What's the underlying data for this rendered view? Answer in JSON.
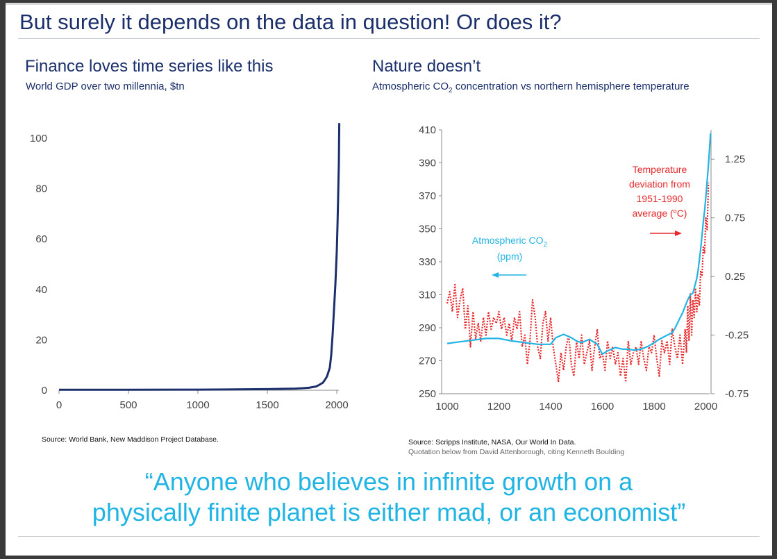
{
  "slide": {
    "title": "But surely it depends on the data in question! Or does it?",
    "quote_line1": "“Anyone who believes in infinite growth on a",
    "quote_line2": "physically finite planet is either mad, or an economist”",
    "colors": {
      "navy": "#1a2f6b",
      "cyan": "#20b4e4",
      "red": "#e8282b"
    }
  },
  "left_panel": {
    "title": "Finance loves time series like this",
    "caption": "World GDP over two millennia, $tn",
    "source": "Source: World Bank, New Maddison Project Database."
  },
  "right_panel": {
    "title": "Nature doesn’t",
    "caption_pre": "Atmospheric CO",
    "caption_sub": "2",
    "caption_post": " concentration vs northern hemisphere temperature",
    "source": "Source: Scripps Institute, NASA, Our World In Data.",
    "source_note": "Quotation below from David Attenborough, citing Kenneth Boulding"
  },
  "chart_data": [
    {
      "type": "line",
      "title": "World GDP over two millennia, $tn",
      "xlabel": "",
      "ylabel": "",
      "xlim": [
        0,
        2000
      ],
      "ylim": [
        0,
        100
      ],
      "x_ticks": [
        "0",
        "500",
        "1000",
        "1500",
        "2000"
      ],
      "y_ticks": [
        "0",
        "20",
        "40",
        "60",
        "80",
        "100"
      ],
      "series": [
        {
          "name": "World GDP",
          "color": "#1a2f6b",
          "x": [
            0,
            500,
            1000,
            1200,
            1500,
            1600,
            1700,
            1750,
            1800,
            1820,
            1850,
            1870,
            1900,
            1913,
            1930,
            1950,
            1960,
            1970,
            1980,
            1990,
            2000,
            2005,
            2010,
            2015,
            2018
          ],
          "y": [
            0.2,
            0.2,
            0.25,
            0.3,
            0.45,
            0.55,
            0.65,
            0.8,
            1.0,
            1.2,
            1.5,
            2.0,
            3.0,
            4.0,
            5.5,
            9.0,
            14.0,
            22.0,
            32.0,
            42.0,
            55.0,
            65.0,
            77.0,
            90.0,
            106.0
          ]
        }
      ]
    },
    {
      "type": "line",
      "title": "Atmospheric CO2 concentration vs northern hemisphere temperature",
      "xlim": [
        1000,
        2020
      ],
      "x_ticks": [
        "1000",
        "1200",
        "1400",
        "1600",
        "1800",
        "2000"
      ],
      "y_left": {
        "label": "Atmospheric CO2 (ppm)",
        "range": [
          250,
          410
        ],
        "ticks": [
          "250",
          "270",
          "290",
          "310",
          "330",
          "350",
          "370",
          "390",
          "410"
        ]
      },
      "y_right": {
        "label": "Temperature deviation from 1951-1990 average (oC)",
        "range": [
          -0.75,
          1.5
        ],
        "ticks": [
          "-0.75",
          "-0.25",
          "0.25",
          "0.75",
          "1.25"
        ]
      },
      "annotations": {
        "co2_label_1": "Atmospheric CO",
        "co2_label_sub": "2",
        "co2_label_2": "(ppm)",
        "temp_label_1": "Temperature",
        "temp_label_2": "deviation from",
        "temp_label_3": "1951-1990",
        "temp_label_4_pre": "average (",
        "temp_label_4_sup": "o",
        "temp_label_4_post": "C)"
      },
      "series": [
        {
          "name": "Atmospheric CO2 (ppm)",
          "axis": "left",
          "color": "#20b4e4",
          "style": "solid",
          "x": [
            1000,
            1050,
            1100,
            1150,
            1200,
            1250,
            1300,
            1350,
            1400,
            1420,
            1450,
            1480,
            1500,
            1520,
            1550,
            1580,
            1600,
            1620,
            1650,
            1680,
            1700,
            1720,
            1750,
            1780,
            1800,
            1820,
            1850,
            1870,
            1880,
            1900,
            1910,
            1920,
            1930,
            1940,
            1950,
            1960,
            1965,
            1970,
            1975,
            1980,
            1985,
            1990,
            1995,
            2000,
            2005,
            2010,
            2015,
            2018
          ],
          "y": [
            280.5,
            281.5,
            282.5,
            283.5,
            283.5,
            282,
            281,
            280,
            280,
            284,
            286,
            284,
            282,
            281,
            283,
            280,
            274,
            276,
            278,
            277,
            277,
            276.5,
            277,
            279,
            281,
            283,
            285.5,
            287,
            289.5,
            296,
            299,
            303,
            307,
            310,
            311,
            317,
            320,
            325,
            331,
            338,
            346,
            354,
            361,
            369,
            379,
            389,
            400,
            408
          ]
        },
        {
          "name": "Temperature deviation (°C)",
          "axis": "right",
          "color": "#e8282b",
          "style": "dotted",
          "x": [
            1000,
            1010,
            1020,
            1030,
            1040,
            1050,
            1060,
            1070,
            1080,
            1090,
            1100,
            1110,
            1120,
            1130,
            1140,
            1150,
            1160,
            1170,
            1180,
            1190,
            1200,
            1210,
            1220,
            1230,
            1240,
            1250,
            1260,
            1270,
            1280,
            1290,
            1300,
            1310,
            1320,
            1330,
            1340,
            1350,
            1360,
            1370,
            1380,
            1390,
            1400,
            1410,
            1420,
            1430,
            1440,
            1450,
            1460,
            1470,
            1480,
            1490,
            1500,
            1510,
            1520,
            1530,
            1540,
            1550,
            1560,
            1570,
            1580,
            1590,
            1600,
            1610,
            1620,
            1630,
            1640,
            1650,
            1660,
            1670,
            1680,
            1690,
            1700,
            1710,
            1720,
            1730,
            1740,
            1750,
            1760,
            1770,
            1780,
            1790,
            1800,
            1810,
            1820,
            1830,
            1840,
            1850,
            1860,
            1870,
            1880,
            1890,
            1900,
            1910,
            1920,
            1925,
            1930,
            1935,
            1940,
            1945,
            1950,
            1955,
            1960,
            1965,
            1970,
            1975,
            1980,
            1985,
            1990,
            1995,
            2000,
            2005,
            2010
          ],
          "y": [
            0.02,
            0.12,
            -0.05,
            0.18,
            -0.1,
            0.05,
            0.15,
            -0.2,
            0.0,
            -0.35,
            -0.05,
            -0.28,
            -0.15,
            -0.3,
            -0.1,
            -0.25,
            -0.05,
            -0.2,
            -0.1,
            -0.15,
            -0.05,
            -0.2,
            -0.1,
            -0.25,
            -0.15,
            -0.3,
            -0.1,
            -0.2,
            -0.05,
            -0.35,
            -0.25,
            -0.5,
            -0.3,
            0.05,
            -0.1,
            -0.35,
            -0.45,
            -0.15,
            -0.05,
            -0.3,
            -0.1,
            -0.35,
            -0.5,
            -0.65,
            -0.4,
            -0.55,
            -0.35,
            -0.25,
            -0.5,
            -0.6,
            -0.3,
            -0.45,
            -0.25,
            -0.5,
            -0.4,
            -0.3,
            -0.55,
            -0.35,
            -0.2,
            -0.45,
            -0.4,
            -0.55,
            -0.3,
            -0.45,
            -0.35,
            -0.5,
            -0.4,
            -0.6,
            -0.45,
            -0.65,
            -0.3,
            -0.5,
            -0.4,
            -0.35,
            -0.5,
            -0.3,
            -0.45,
            -0.55,
            -0.35,
            -0.4,
            -0.25,
            -0.45,
            -0.6,
            -0.3,
            -0.4,
            -0.3,
            -0.5,
            -0.2,
            -0.35,
            -0.45,
            -0.25,
            -0.5,
            -0.2,
            -0.4,
            0.0,
            -0.3,
            0.1,
            -0.25,
            0.05,
            -0.1,
            0.15,
            -0.05,
            0.1,
            0.0,
            0.3,
            0.25,
            0.5,
            0.45,
            0.75,
            0.65,
            1.05
          ]
        }
      ]
    }
  ]
}
